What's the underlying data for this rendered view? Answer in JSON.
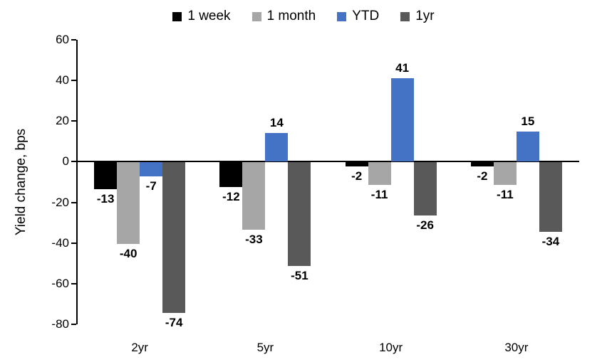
{
  "chart_data": {
    "type": "bar",
    "title": "",
    "categories": [
      "2yr",
      "5yr",
      "10yr",
      "30yr"
    ],
    "series": [
      {
        "name": "1 week",
        "color": "#000000",
        "values": [
          -13,
          -12,
          -2,
          -2
        ]
      },
      {
        "name": "1 month",
        "color": "#A6A6A6",
        "values": [
          -40,
          -33,
          -11,
          -11
        ]
      },
      {
        "name": "YTD",
        "color": "#4472C4",
        "values": [
          -7,
          14,
          41,
          15
        ]
      },
      {
        "name": "1yr",
        "color": "#595959",
        "values": [
          -74,
          -51,
          -26,
          -34
        ]
      }
    ],
    "xlabel": "",
    "ylabel": "Yield change, bps",
    "ylim": [
      -80,
      60
    ],
    "ytick_interval": 20,
    "yticks": [
      60,
      40,
      20,
      0,
      -20,
      -40,
      -60,
      -80
    ],
    "grid": false,
    "legend_position": "top",
    "data_labels": true,
    "axis_color": "#000000"
  }
}
